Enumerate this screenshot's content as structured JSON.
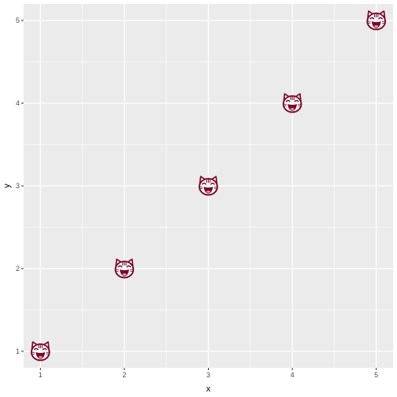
{
  "chart_data": {
    "type": "scatter",
    "title": "",
    "xlabel": "x",
    "ylabel": "y",
    "xlim": [
      0.8,
      5.2
    ],
    "ylim": [
      0.8,
      5.2
    ],
    "x_ticks": [
      1,
      2,
      3,
      4,
      5
    ],
    "y_ticks": [
      1,
      2,
      3,
      4,
      5
    ],
    "grid": true,
    "series": [
      {
        "marker": "grinning-cat-emoji-icon",
        "points": [
          {
            "x": 1,
            "y": 1
          },
          {
            "x": 2,
            "y": 2
          },
          {
            "x": 3,
            "y": 3
          },
          {
            "x": 4,
            "y": 4
          },
          {
            "x": 5,
            "y": 5
          }
        ]
      }
    ],
    "colors": {
      "panel": "#ebebeb",
      "grid_major": "#ffffff",
      "marker_outline": "#7a0a2a",
      "marker_fill": "#ffffff"
    }
  }
}
